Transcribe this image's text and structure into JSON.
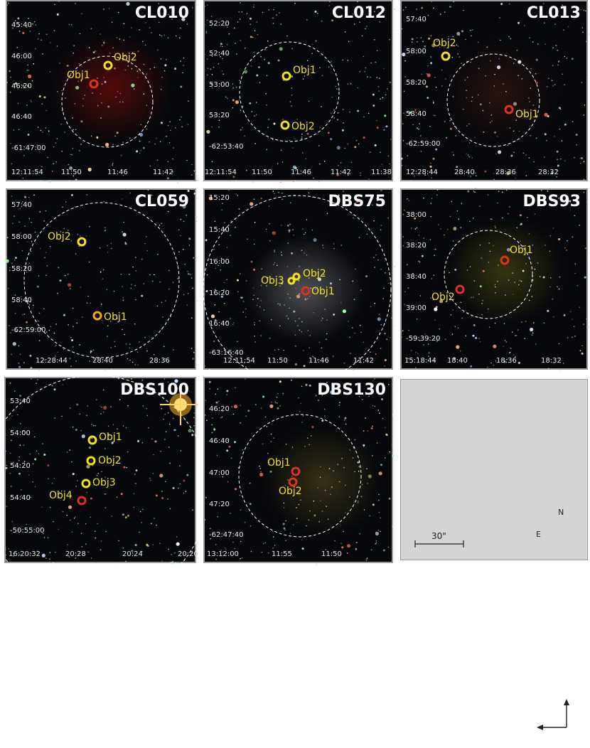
{
  "panels": [
    {
      "id": "cl010",
      "title": "CL010",
      "yticks": [
        "45:40",
        "46:00",
        "46:20",
        "46:40",
        "-61:47:00"
      ],
      "xticks": [
        "12:11:54",
        "11:50",
        "11:46",
        "11:42"
      ],
      "objects": [
        {
          "label": "Obj1",
          "color": "#e03020"
        },
        {
          "label": "Obj2",
          "color": "#f2e21a"
        }
      ]
    },
    {
      "id": "cl012",
      "title": "CL012",
      "yticks": [
        "52:20",
        "52:40",
        "53:00",
        "53:20",
        "-62:53:40"
      ],
      "xticks": [
        "12:11:54",
        "11:50",
        "11:46",
        "11:42",
        "11:38"
      ],
      "objects": [
        {
          "label": "Obj1",
          "color": "#f2e21a"
        },
        {
          "label": "Obj2",
          "color": "#f2e21a"
        }
      ]
    },
    {
      "id": "cl013",
      "title": "CL013",
      "yticks": [
        "57:40",
        "58:00",
        "58:20",
        "58:40",
        "-62:59:00"
      ],
      "xticks": [
        "12:28:44",
        "28:40",
        "28:36",
        "28:32"
      ],
      "objects": [
        {
          "label": "Obj1",
          "color": "#e03020"
        },
        {
          "label": "Obj2",
          "color": "#f2e21a"
        }
      ]
    },
    {
      "id": "cl059",
      "title": "CL059",
      "yticks": [
        "57:40",
        "58:00",
        "58:20",
        "58:40",
        "-62:59:00"
      ],
      "xticks": [
        "12:28:44",
        "28:40",
        "28:36"
      ],
      "objects": [
        {
          "label": "Obj1",
          "color": "#f2e21a"
        },
        {
          "label": "Obj2",
          "color": "#f2e21a"
        }
      ]
    },
    {
      "id": "dbs75",
      "title": "DBS75",
      "yticks": [
        "15:20",
        "15:40",
        "16:00",
        "16:20",
        "16:40",
        "-63:16:40"
      ],
      "xticks": [
        "12:11:54",
        "11:50",
        "11:46",
        "11:42"
      ],
      "objects": [
        {
          "label": "Obj1",
          "color": "#e03020"
        },
        {
          "label": "Obj2",
          "color": "#f2e21a"
        },
        {
          "label": "Obj3",
          "color": "#f2e21a"
        }
      ]
    },
    {
      "id": "dbs93",
      "title": "DBS93",
      "yticks": [
        "38:00",
        "38:20",
        "38:40",
        "39:00",
        "-59:39:20"
      ],
      "xticks": [
        "15:18:44",
        "18:40",
        "18:36",
        "18:32"
      ],
      "objects": [
        {
          "label": "Obj1",
          "color": "#e03020"
        },
        {
          "label": "Obj2",
          "color": "#e03020"
        }
      ]
    },
    {
      "id": "dbs100",
      "title": "DBS100",
      "yticks": [
        "53:40",
        "54:00",
        "54:20",
        "54:40",
        "-50:55:00"
      ],
      "xticks": [
        "16:20:32",
        "20:28",
        "20:24",
        "20:20"
      ],
      "objects": [
        {
          "label": "Obj1",
          "color": "#f2e21a"
        },
        {
          "label": "Obj2",
          "color": "#f2e21a"
        },
        {
          "label": "Obj3",
          "color": "#f2e21a"
        },
        {
          "label": "Obj4",
          "color": "#e03020"
        }
      ]
    },
    {
      "id": "dbs130",
      "title": "DBS130",
      "yticks": [
        "46:20",
        "46:40",
        "47:00",
        "47:20",
        "-62:47:40"
      ],
      "xticks": [
        "13:12:00",
        "11:55",
        "11:50"
      ],
      "objects": [
        {
          "label": "Obj1",
          "color": "#e03020"
        },
        {
          "label": "Obj2",
          "color": "#e03020"
        }
      ]
    }
  ],
  "legend_panel": {
    "scale_label": "30\"",
    "north_label": "N",
    "east_label": "E"
  }
}
